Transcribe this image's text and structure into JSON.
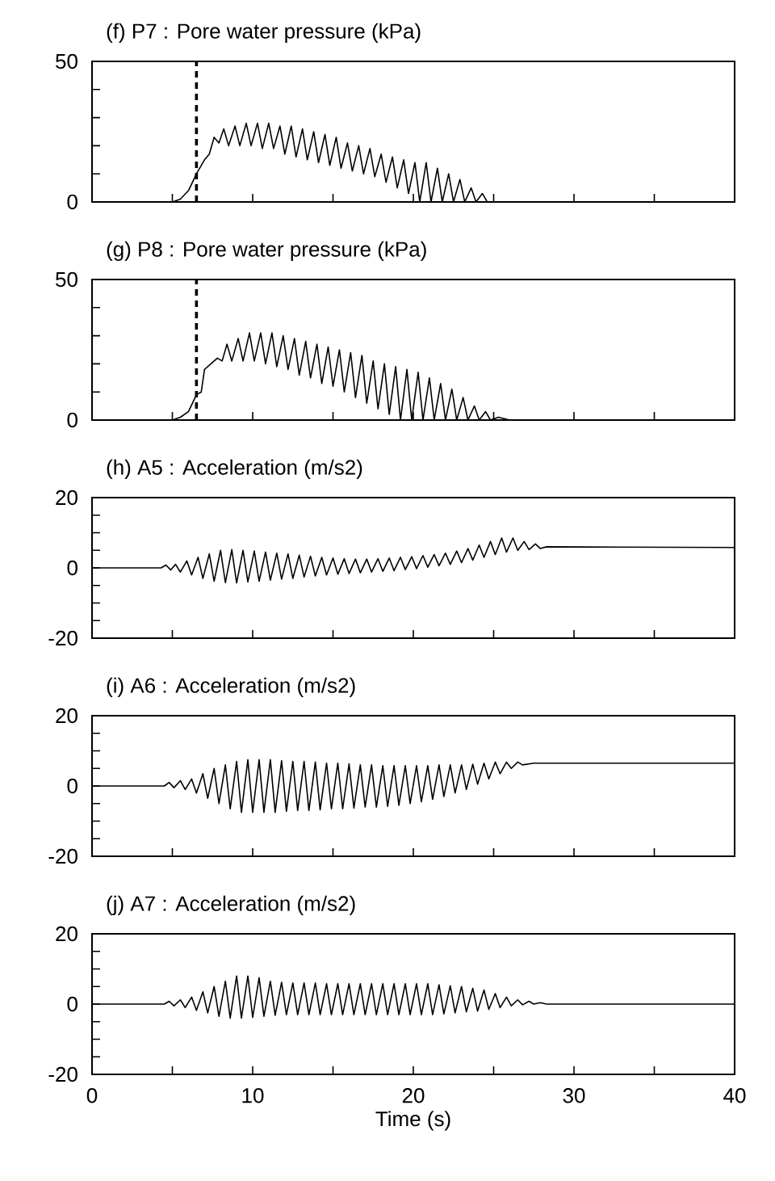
{
  "chart_data": [
    {
      "type": "line",
      "title": "(f) P7 : Pore water pressure (kPa)",
      "color": "#000000",
      "tick_labels": "y",
      "xlim": [
        0,
        40
      ],
      "ylim": [
        0,
        50
      ],
      "xticks": [
        0,
        {
          "value": 5,
          "label": null
        },
        10,
        {
          "value": 15,
          "label": null
        },
        20,
        {
          "value": 25,
          "label": null
        },
        30,
        {
          "value": 35,
          "label": null
        },
        40
      ],
      "yticks": [
        0,
        {
          "value": 10,
          "label": null
        },
        {
          "value": 20,
          "label": null
        },
        {
          "value": 30,
          "label": null
        },
        {
          "value": 40,
          "label": null
        },
        50
      ],
      "ref_lines": [
        {
          "axis": "x",
          "value": 6.5,
          "line_style": "dashed"
        }
      ],
      "x": [
        0,
        5,
        5.5,
        6,
        6.5,
        7,
        7.3,
        7.6,
        7.9,
        8.2,
        8.5,
        8.9,
        9.2,
        9.6,
        9.9,
        10.3,
        10.6,
        11.0,
        11.3,
        11.7,
        12.0,
        12.4,
        12.7,
        13.1,
        13.4,
        13.8,
        14.1,
        14.5,
        14.8,
        15.2,
        15.5,
        15.9,
        16.2,
        16.6,
        16.9,
        17.3,
        17.6,
        18.0,
        18.3,
        18.7,
        19.0,
        19.4,
        19.7,
        20.1,
        20.4,
        20.8,
        21.1,
        21.5,
        21.8,
        22.2,
        22.5,
        22.9,
        23.2,
        23.6,
        23.9,
        24.3,
        24.6,
        25,
        40
      ],
      "values": [
        0,
        0,
        1,
        4,
        10,
        15,
        17,
        23,
        21,
        26,
        20,
        27,
        20,
        28,
        20,
        28,
        19,
        28,
        19,
        27,
        17,
        27,
        16,
        26,
        15,
        25,
        14,
        24,
        13,
        23,
        12,
        21,
        11,
        20,
        10,
        19,
        9,
        17,
        7,
        16,
        5,
        15,
        3,
        14,
        0,
        14,
        0,
        12,
        0,
        10,
        0,
        8,
        0,
        5,
        0,
        3,
        0,
        0,
        0
      ]
    },
    {
      "type": "line",
      "title": "(g) P8 : Pore water pressure (kPa)",
      "color": "#000000",
      "tick_labels": "y",
      "xlim": [
        0,
        40
      ],
      "ylim": [
        0,
        50
      ],
      "xticks": [
        0,
        {
          "value": 5,
          "label": null
        },
        10,
        {
          "value": 15,
          "label": null
        },
        20,
        {
          "value": 25,
          "label": null
        },
        30,
        {
          "value": 35,
          "label": null
        },
        40
      ],
      "yticks": [
        0,
        {
          "value": 10,
          "label": null
        },
        {
          "value": 20,
          "label": null
        },
        {
          "value": 30,
          "label": null
        },
        {
          "value": 40,
          "label": null
        },
        50
      ],
      "ref_lines": [
        {
          "axis": "x",
          "value": 6.5,
          "line_style": "dashed"
        }
      ],
      "x": [
        0,
        5,
        5.5,
        6,
        6.5,
        6.8,
        7.0,
        7.4,
        7.8,
        8.1,
        8.4,
        8.7,
        9.1,
        9.4,
        9.8,
        10.1,
        10.5,
        10.8,
        11.2,
        11.5,
        11.9,
        12.2,
        12.6,
        12.9,
        13.3,
        13.6,
        14.0,
        14.3,
        14.7,
        15.0,
        15.4,
        15.7,
        16.1,
        16.4,
        16.8,
        17.1,
        17.5,
        17.8,
        18.2,
        18.5,
        18.9,
        19.2,
        19.6,
        19.9,
        20.3,
        20.6,
        21.0,
        21.3,
        21.7,
        22.0,
        22.4,
        22.7,
        23.1,
        23.4,
        23.8,
        24.1,
        24.5,
        24.8,
        25.3,
        26,
        40
      ],
      "values": [
        0,
        0,
        1,
        3,
        9,
        10,
        18,
        20,
        22,
        21,
        27,
        21,
        29,
        21,
        31,
        21,
        31,
        20,
        31,
        19,
        30,
        18,
        29,
        16,
        28,
        15,
        27,
        13,
        26,
        12,
        25,
        10,
        24,
        8,
        23,
        6,
        21,
        4,
        20,
        2,
        19,
        0,
        18,
        0,
        17,
        0,
        15,
        0,
        13,
        0,
        11,
        0,
        8,
        0,
        5,
        0,
        3,
        0,
        1,
        0,
        0
      ]
    },
    {
      "type": "line",
      "title": "(h) A5 : Acceleration (m/s2)",
      "color": "#000000",
      "tick_labels": "y",
      "xlim": [
        0,
        40
      ],
      "ylim": [
        -20,
        20
      ],
      "xticks": [
        0,
        {
          "value": 5,
          "label": null
        },
        10,
        {
          "value": 15,
          "label": null
        },
        20,
        {
          "value": 25,
          "label": null
        },
        30,
        {
          "value": 35,
          "label": null
        },
        40
      ],
      "yticks": [
        -20,
        {
          "value": -15,
          "label": null
        },
        {
          "value": -10,
          "label": null
        },
        {
          "value": -5,
          "label": null
        },
        0,
        {
          "value": 5,
          "label": null
        },
        {
          "value": 10,
          "label": null
        },
        {
          "value": 15,
          "label": null
        },
        20
      ],
      "x": [
        0,
        4.3,
        4.6,
        4.9,
        5.2,
        5.5,
        5.9,
        6.2,
        6.6,
        6.9,
        7.3,
        7.6,
        8.0,
        8.3,
        8.7,
        9.0,
        9.4,
        9.7,
        10.1,
        10.4,
        10.8,
        11.1,
        11.5,
        11.8,
        12.2,
        12.5,
        12.9,
        13.2,
        13.6,
        13.9,
        14.3,
        14.6,
        15.0,
        15.3,
        15.7,
        16.0,
        16.4,
        16.7,
        17.1,
        17.4,
        17.8,
        18.1,
        18.5,
        18.8,
        19.2,
        19.5,
        19.9,
        20.2,
        20.6,
        20.9,
        21.3,
        21.6,
        22.0,
        22.3,
        22.7,
        23.0,
        23.4,
        23.7,
        24.1,
        24.4,
        24.8,
        25.1,
        25.5,
        25.8,
        26.2,
        26.5,
        26.9,
        27.2,
        27.6,
        27.9,
        28.3,
        40
      ],
      "values": [
        0,
        0,
        0.8,
        -0.6,
        1,
        -1.2,
        2,
        -2,
        3,
        -3,
        4,
        -3.8,
        5,
        -4.2,
        5.2,
        -4.3,
        5,
        -4,
        4.8,
        -3.8,
        4.5,
        -3.5,
        4.2,
        -3.2,
        4,
        -3,
        3.6,
        -2.6,
        3.3,
        -2.3,
        3,
        -2,
        2.8,
        -1.8,
        2.6,
        -1.6,
        2.5,
        -1.4,
        2.5,
        -1.2,
        2.6,
        -1,
        2.8,
        -0.8,
        3,
        -0.5,
        3.2,
        -0.2,
        3.5,
        0.2,
        3.8,
        0.6,
        4.2,
        1,
        4.8,
        1.5,
        5.5,
        2.2,
        6.5,
        3,
        7.5,
        3.8,
        8.5,
        4.5,
        8.5,
        5,
        7.5,
        5.2,
        6.8,
        5.5,
        6,
        5.8
      ]
    },
    {
      "type": "line",
      "title": "(i) A6 : Acceleration (m/s2)",
      "color": "#000000",
      "tick_labels": "y",
      "xlim": [
        0,
        40
      ],
      "ylim": [
        -20,
        20
      ],
      "xticks": [
        0,
        {
          "value": 5,
          "label": null
        },
        10,
        {
          "value": 15,
          "label": null
        },
        20,
        {
          "value": 25,
          "label": null
        },
        30,
        {
          "value": 35,
          "label": null
        },
        40
      ],
      "yticks": [
        -20,
        {
          "value": -15,
          "label": null
        },
        {
          "value": -10,
          "label": null
        },
        {
          "value": -5,
          "label": null
        },
        0,
        {
          "value": 5,
          "label": null
        },
        {
          "value": 10,
          "label": null
        },
        {
          "value": 15,
          "label": null
        },
        20
      ],
      "x": [
        0,
        4.5,
        4.8,
        5.1,
        5.5,
        5.8,
        6.2,
        6.5,
        6.9,
        7.2,
        7.6,
        7.9,
        8.3,
        8.6,
        9.0,
        9.3,
        9.7,
        10.0,
        10.4,
        10.7,
        11.1,
        11.4,
        11.8,
        12.1,
        12.5,
        12.8,
        13.2,
        13.5,
        13.9,
        14.2,
        14.6,
        14.9,
        15.3,
        15.6,
        16.0,
        16.3,
        16.7,
        17.0,
        17.4,
        17.7,
        18.1,
        18.4,
        18.8,
        19.1,
        19.5,
        19.8,
        20.2,
        20.5,
        20.9,
        21.2,
        21.6,
        21.9,
        22.3,
        22.6,
        23.0,
        23.3,
        23.7,
        24.0,
        24.4,
        24.7,
        25.1,
        25.4,
        25.8,
        26.1,
        26.5,
        26.8,
        27.5,
        40
      ],
      "values": [
        0,
        0,
        1,
        -0.5,
        1.5,
        -1,
        2,
        -2,
        3.5,
        -3.5,
        5,
        -5,
        6,
        -6.5,
        7,
        -7.5,
        7.5,
        -7.5,
        7.5,
        -7.5,
        7.5,
        -7.5,
        7.2,
        -7.2,
        7,
        -7,
        7,
        -7,
        6.8,
        -6.8,
        6.5,
        -6.5,
        6.5,
        -6.5,
        6.3,
        -6.3,
        6,
        -6,
        6,
        -6,
        5.8,
        -5.8,
        5.8,
        -5.5,
        5.8,
        -5,
        5.8,
        -4.5,
        5.8,
        -3.8,
        6,
        -3,
        6,
        -2,
        6,
        -1,
        6.2,
        0.5,
        6.5,
        2,
        6.8,
        3.5,
        6.8,
        5,
        6.8,
        6,
        6.5,
        6.5
      ]
    },
    {
      "type": "line",
      "title": "(j) A7 : Acceleration (m/s2)",
      "xlabel": "Time (s)",
      "color": "#000000",
      "xlim": [
        0,
        40
      ],
      "ylim": [
        -20,
        20
      ],
      "xticks": [
        0,
        {
          "value": 5,
          "label": null
        },
        10,
        {
          "value": 15,
          "label": null
        },
        20,
        {
          "value": 25,
          "label": null
        },
        30,
        {
          "value": 35,
          "label": null
        },
        40
      ],
      "yticks": [
        -20,
        {
          "value": -15,
          "label": null
        },
        {
          "value": -10,
          "label": null
        },
        {
          "value": -5,
          "label": null
        },
        0,
        {
          "value": 5,
          "label": null
        },
        {
          "value": 10,
          "label": null
        },
        {
          "value": 15,
          "label": null
        },
        20
      ],
      "x": [
        0,
        4.5,
        4.8,
        5.1,
        5.5,
        5.8,
        6.2,
        6.5,
        6.9,
        7.2,
        7.6,
        7.9,
        8.3,
        8.6,
        9.0,
        9.3,
        9.7,
        10.0,
        10.4,
        10.7,
        11.1,
        11.4,
        11.8,
        12.1,
        12.5,
        12.8,
        13.2,
        13.5,
        13.9,
        14.2,
        14.6,
        14.9,
        15.3,
        15.6,
        16.0,
        16.3,
        16.7,
        17.0,
        17.4,
        17.7,
        18.1,
        18.4,
        18.8,
        19.1,
        19.5,
        19.8,
        20.2,
        20.5,
        20.9,
        21.2,
        21.6,
        21.9,
        22.3,
        22.6,
        23.0,
        23.3,
        23.7,
        24.0,
        24.4,
        24.7,
        25.1,
        25.4,
        25.8,
        26.1,
        26.5,
        26.8,
        27.2,
        27.5,
        27.9,
        28.3,
        40
      ],
      "values": [
        0,
        0,
        0.8,
        -0.5,
        1.2,
        -1,
        2,
        -1.8,
        3.5,
        -2.5,
        5,
        -3.5,
        6.5,
        -4,
        8,
        -4,
        8,
        -3.8,
        7.5,
        -3.5,
        6.5,
        -3.2,
        6.2,
        -3,
        6,
        -3,
        6,
        -3,
        6,
        -3,
        5.8,
        -3,
        5.8,
        -3,
        5.8,
        -3,
        5.8,
        -3,
        5.8,
        -3,
        5.8,
        -3,
        5.8,
        -3,
        5.8,
        -3,
        5.8,
        -3,
        5.8,
        -3,
        5.5,
        -2.8,
        5.2,
        -2.5,
        5,
        -2.2,
        4.5,
        -2,
        4,
        -1.5,
        3,
        -1,
        2,
        -0.5,
        1.2,
        -0.2,
        0.8,
        0,
        0.4,
        0,
        0
      ]
    }
  ]
}
